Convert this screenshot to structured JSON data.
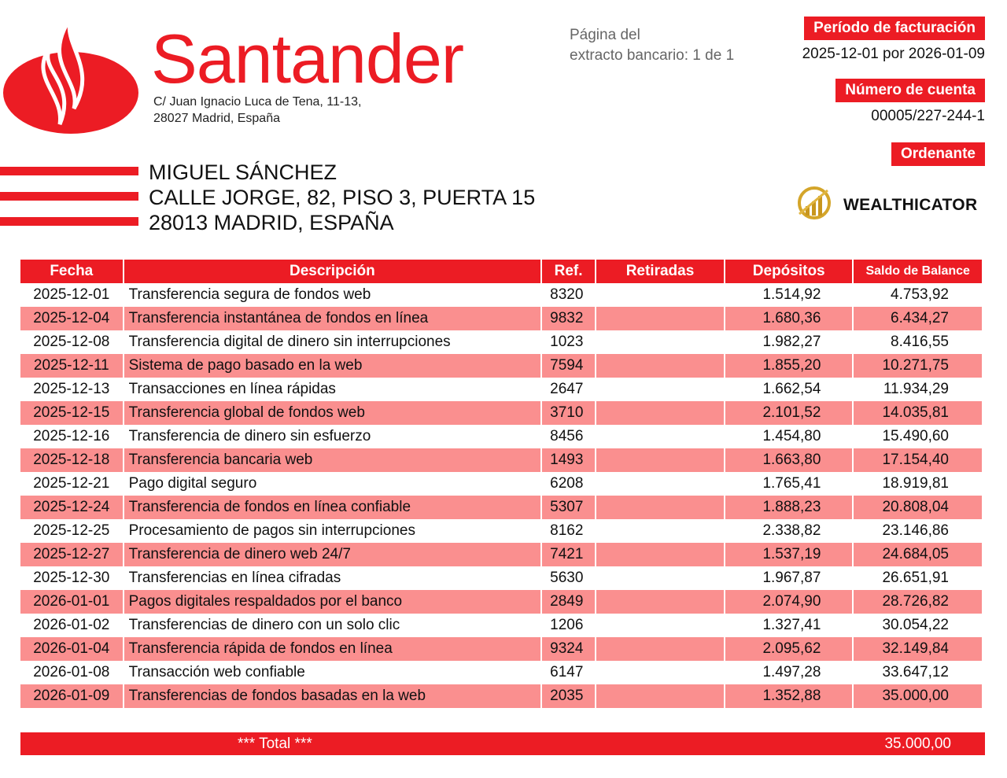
{
  "bank": {
    "name": "Santander",
    "address_line1": "C/ Juan Ignacio Luca de Tena, 11-13,",
    "address_line2": "28027 Madrid, España",
    "brand_color": "#ec1c24"
  },
  "customer": {
    "name": "MIGUEL SÁNCHEZ",
    "address_line1": "CALLE JORGE, 82, PISO 3, PUERTA 15",
    "address_line2": "28013 MADRID, ESPAÑA"
  },
  "page_info": {
    "line1": "Página del",
    "line2": "extracto bancario: 1 de 1"
  },
  "billing_period": {
    "label": "Período de facturación",
    "value": "2025-12-01 por 2026-01-09"
  },
  "account": {
    "label": "Número de cuenta",
    "value": "00005/227-244-1"
  },
  "ordering": {
    "label": "Ordenante",
    "logo_text": "WEALTHICATOR"
  },
  "table": {
    "headers": [
      "Fecha",
      "Descripción",
      "Ref.",
      "Retiradas",
      "Depósitos",
      "Saldo de Balance"
    ],
    "row_stripe_color": "#fa8f8f",
    "rows": [
      [
        "2025-12-01",
        "Transferencia segura de fondos web",
        "8320",
        "",
        "1.514,92",
        "4.753,92"
      ],
      [
        "2025-12-04",
        "Transferencia instantánea de fondos en línea",
        "9832",
        "",
        "1.680,36",
        "6.434,27"
      ],
      [
        "2025-12-08",
        "Transferencia digital de dinero sin interrupciones",
        "1023",
        "",
        "1.982,27",
        "8.416,55"
      ],
      [
        "2025-12-11",
        "Sistema de pago basado en la web",
        "7594",
        "",
        "1.855,20",
        "10.271,75"
      ],
      [
        "2025-12-13",
        "Transacciones en línea rápidas",
        "2647",
        "",
        "1.662,54",
        "11.934,29"
      ],
      [
        "2025-12-15",
        "Transferencia global de fondos web",
        "3710",
        "",
        "2.101,52",
        "14.035,81"
      ],
      [
        "2025-12-16",
        "Transferencia de dinero sin esfuerzo",
        "8456",
        "",
        "1.454,80",
        "15.490,60"
      ],
      [
        "2025-12-18",
        "Transferencia bancaria web",
        "1493",
        "",
        "1.663,80",
        "17.154,40"
      ],
      [
        "2025-12-21",
        "Pago digital seguro",
        "6208",
        "",
        "1.765,41",
        "18.919,81"
      ],
      [
        "2025-12-24",
        "Transferencia de fondos en línea confiable",
        "5307",
        "",
        "1.888,23",
        "20.808,04"
      ],
      [
        "2025-12-25",
        "Procesamiento de pagos sin interrupciones",
        "8162",
        "",
        "2.338,82",
        "23.146,86"
      ],
      [
        "2025-12-27",
        "Transferencia de dinero web 24/7",
        "7421",
        "",
        "1.537,19",
        "24.684,05"
      ],
      [
        "2025-12-30",
        "Transferencias en línea cifradas",
        "5630",
        "",
        "1.967,87",
        "26.651,91"
      ],
      [
        "2026-01-01",
        "Pagos digitales respaldados por el banco",
        "2849",
        "",
        "2.074,90",
        "28.726,82"
      ],
      [
        "2026-01-02",
        "Transferencias de dinero con un solo clic",
        "1206",
        "",
        "1.327,41",
        "30.054,22"
      ],
      [
        "2026-01-04",
        "Transferencia rápida de fondos en línea",
        "9324",
        "",
        "2.095,62",
        "32.149,84"
      ],
      [
        "2026-01-08",
        "Transacción web confiable",
        "6147",
        "",
        "1.497,28",
        "33.647,12"
      ],
      [
        "2026-01-09",
        "Transferencias de fondos basadas en la web",
        "2035",
        "",
        "1.352,88",
        "35.000,00"
      ]
    ]
  },
  "total": {
    "label": "*** Total ***",
    "amount": "35.000,00"
  }
}
